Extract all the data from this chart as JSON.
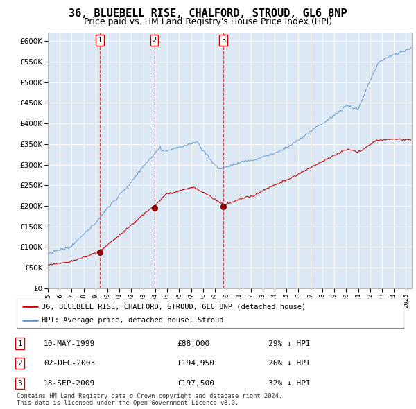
{
  "title": "36, BLUEBELL RISE, CHALFORD, STROUD, GL6 8NP",
  "subtitle": "Price paid vs. HM Land Registry's House Price Index (HPI)",
  "title_fontsize": 11,
  "subtitle_fontsize": 9,
  "background_color": "#ffffff",
  "plot_bg_color": "#dce9f5",
  "grid_color": "#ffffff",
  "hpi_color": "#6699cc",
  "price_color": "#cc0000",
  "sale_marker_color": "#990000",
  "sale_vline_color": "#cc0000",
  "yticks": [
    0,
    50000,
    100000,
    150000,
    200000,
    250000,
    300000,
    350000,
    400000,
    450000,
    500000,
    550000,
    600000
  ],
  "xlim_start": 1995.0,
  "xlim_end": 2025.5,
  "ylim_min": 0,
  "ylim_max": 620000,
  "legend_label_red": "36, BLUEBELL RISE, CHALFORD, STROUD, GL6 8NP (detached house)",
  "legend_label_blue": "HPI: Average price, detached house, Stroud",
  "sales": [
    {
      "num": 1,
      "date_str": "10-MAY-1999",
      "price": 88000,
      "pct": "29%",
      "x": 1999.36
    },
    {
      "num": 2,
      "date_str": "02-DEC-2003",
      "price": 194950,
      "pct": "26%",
      "x": 2003.92
    },
    {
      "num": 3,
      "date_str": "18-SEP-2009",
      "price": 197500,
      "pct": "32%",
      "x": 2009.71
    }
  ],
  "footnote1": "Contains HM Land Registry data © Crown copyright and database right 2024.",
  "footnote2": "This data is licensed under the Open Government Licence v3.0."
}
